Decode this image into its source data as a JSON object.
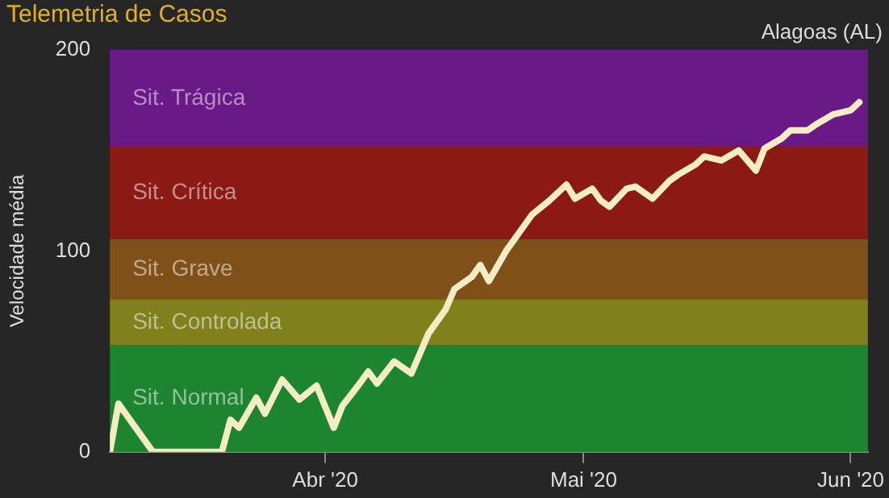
{
  "chart_data": {
    "type": "line",
    "title": "Telemetria de Casos",
    "subtitle": "Alagoas (AL)",
    "ylabel": "Velocidade média",
    "x": [
      "2020-03-07",
      "2020-03-08",
      "2020-03-12",
      "2020-03-20",
      "2020-03-21",
      "2020-03-22",
      "2020-03-24",
      "2020-03-25",
      "2020-03-27",
      "2020-03-29",
      "2020-03-31",
      "2020-04-02",
      "2020-04-03",
      "2020-04-05",
      "2020-04-06",
      "2020-04-07",
      "2020-04-09",
      "2020-04-11",
      "2020-04-12",
      "2020-04-13",
      "2020-04-15",
      "2020-04-16",
      "2020-04-18",
      "2020-04-19",
      "2020-04-20",
      "2020-04-22",
      "2020-04-24",
      "2020-04-25",
      "2020-04-27",
      "2020-04-29",
      "2020-04-30",
      "2020-05-02",
      "2020-05-03",
      "2020-05-04",
      "2020-05-06",
      "2020-05-07",
      "2020-05-09",
      "2020-05-11",
      "2020-05-12",
      "2020-05-14",
      "2020-05-15",
      "2020-05-17",
      "2020-05-19",
      "2020-05-21",
      "2020-05-22",
      "2020-05-24",
      "2020-05-25",
      "2020-05-27",
      "2020-05-28",
      "2020-05-30",
      "2020-06-01",
      "2020-06-02"
    ],
    "series": [
      {
        "color": "#f3ecc4",
        "values": [
          0,
          24,
          0,
          0,
          16,
          12,
          27,
          19,
          36,
          26,
          33,
          12,
          23,
          34,
          40,
          34,
          45,
          39,
          49,
          59,
          71,
          81,
          87,
          93,
          85,
          100,
          112,
          118,
          125,
          133,
          126,
          131,
          125,
          122,
          131,
          132,
          126,
          135,
          138,
          143,
          147,
          145,
          150,
          140,
          151,
          156,
          160,
          160,
          163,
          168,
          170,
          174
        ]
      }
    ],
    "xlim": [
      "2020-03-07",
      "2020-06-03"
    ],
    "xticks": [
      {
        "value": "2020-04-01",
        "label": "Abr '20"
      },
      {
        "value": "2020-05-01",
        "label": "Mai '20"
      },
      {
        "value": "2020-06-01",
        "label": "Jun '20"
      }
    ],
    "ylim": [
      0,
      200
    ],
    "yticks": [
      0,
      100,
      200
    ],
    "grid": false,
    "line_style": "solid",
    "bands": [
      {
        "axis": "y",
        "from": 0,
        "to": 53,
        "label": "Sit. Normal",
        "color": "#1d8530"
      },
      {
        "axis": "y",
        "from": 53,
        "to": 76,
        "label": "Sit. Controlada",
        "color": "#80801c"
      },
      {
        "axis": "y",
        "from": 76,
        "to": 106,
        "label": "Sit. Grave",
        "color": "#7f5018"
      },
      {
        "axis": "y",
        "from": 106,
        "to": 152,
        "label": "Sit. Crítica",
        "color": "#8b1a14"
      },
      {
        "axis": "y",
        "from": 152,
        "to": 200,
        "label": "Sit. Trágica",
        "color": "#6a1a86"
      }
    ]
  }
}
